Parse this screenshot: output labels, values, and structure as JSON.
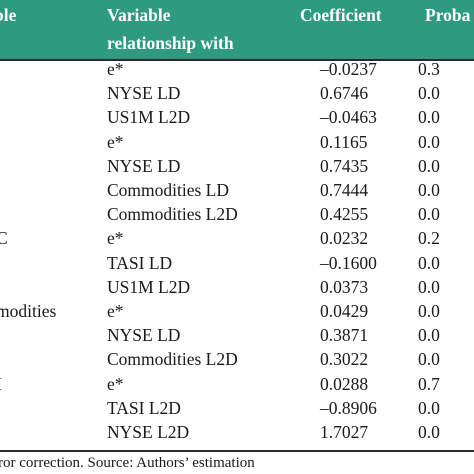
{
  "table": {
    "header": {
      "dependent": "ble",
      "variable_line1": "Variable",
      "variable_line2": "relationship with",
      "coefficient": "Coefficient",
      "probability": "Proba"
    },
    "rows": [
      {
        "dependent": "",
        "variable": "e*",
        "coefficient": "–0.0237",
        "probability": "0.3"
      },
      {
        "dependent": "",
        "variable": "NYSE LD",
        "coefficient": "0.6746",
        "probability": "0.0"
      },
      {
        "dependent": "",
        "variable": "US1M L2D",
        "coefficient": "–0.0463",
        "probability": "0.0"
      },
      {
        "dependent": "",
        "variable": "e*",
        "coefficient": "0.1165",
        "probability": "0.0"
      },
      {
        "dependent": "",
        "variable": "NYSE LD",
        "coefficient": "0.7435",
        "probability": "0.0"
      },
      {
        "dependent": "",
        "variable": "Commodities LD",
        "coefficient": "0.7444",
        "probability": "0.0"
      },
      {
        "dependent": "",
        "variable": "Commodities L2D",
        "coefficient": "0.4255",
        "probability": "0.0"
      },
      {
        "dependent": "C",
        "variable": "e*",
        "coefficient": "0.0232",
        "probability": "0.2"
      },
      {
        "dependent": "",
        "variable": "TASI LD",
        "coefficient": "–0.1600",
        "probability": "0.0"
      },
      {
        "dependent": "",
        "variable": "US1M L2D",
        "coefficient": "0.0373",
        "probability": "0.0"
      },
      {
        "dependent": "modities",
        "variable": "e*",
        "coefficient": "0.0429",
        "probability": "0.0"
      },
      {
        "dependent": "",
        "variable": "NYSE LD",
        "coefficient": "0.3871",
        "probability": "0.0"
      },
      {
        "dependent": "",
        "variable": "Commodities L2D",
        "coefficient": "0.3022",
        "probability": "0.0"
      },
      {
        "dependent": "I",
        "variable": "e*",
        "coefficient": "0.0288",
        "probability": "0.7"
      },
      {
        "dependent": "",
        "variable": "TASI L2D",
        "coefficient": "–0.8906",
        "probability": "0.0"
      },
      {
        "dependent": "",
        "variable": "NYSE L2D",
        "coefficient": "1.7027",
        "probability": "0.0"
      }
    ]
  },
  "footer": {
    "note": "ror correction. Source: Authors’ estimation"
  },
  "colors": {
    "header_bg": "#2e9b80",
    "header_text": "#ffffff",
    "body_text": "#1a1a1a"
  }
}
